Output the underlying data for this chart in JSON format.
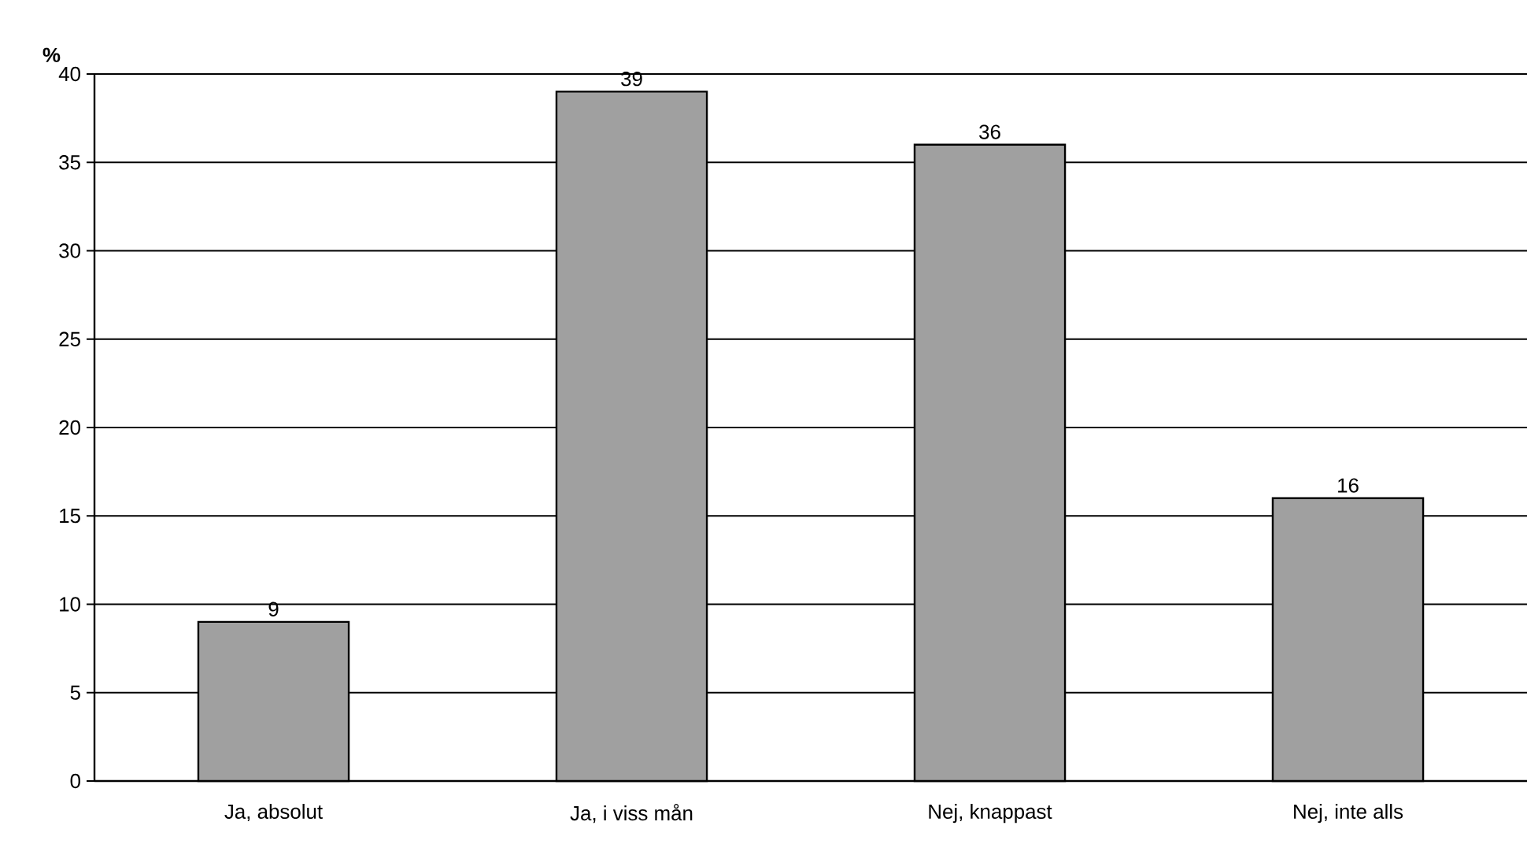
{
  "chart_data": {
    "type": "bar",
    "ylabel": "%",
    "categories": [
      "Ja, absolut",
      "Ja, i viss mån",
      "Nej, knappast",
      "Nej, inte alls"
    ],
    "values": [
      9,
      39,
      36,
      16
    ],
    "color": "#a0a0a0",
    "ylim": [
      0,
      40
    ],
    "yticks": [
      0,
      5,
      10,
      15,
      20,
      25,
      30,
      35,
      40
    ],
    "grid": "y",
    "data_labels": true
  }
}
